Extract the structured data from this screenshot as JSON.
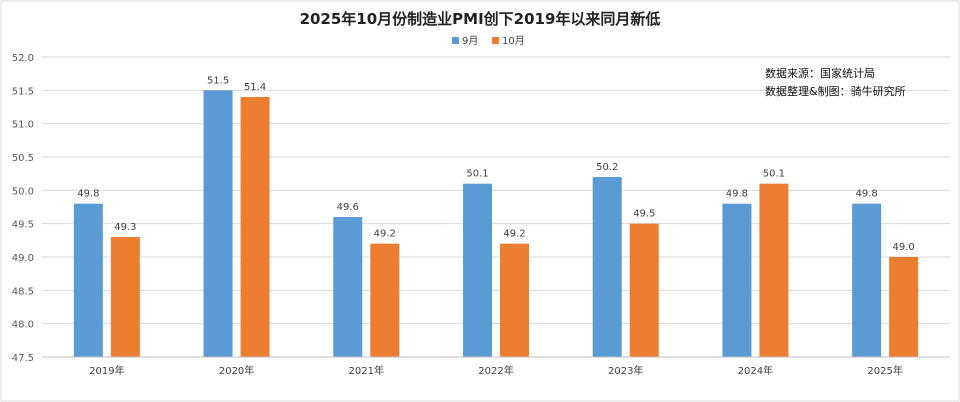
{
  "chart_data": {
    "type": "bar",
    "title": "2025年10月份制造业PMI创下2019年以来同月新低",
    "categories": [
      "2019年",
      "2020年",
      "2021年",
      "2022年",
      "2023年",
      "2024年",
      "2025年"
    ],
    "series": [
      {
        "name": "9月",
        "values": [
          49.8,
          51.5,
          49.6,
          50.1,
          50.2,
          49.8,
          49.8
        ],
        "color": "#5B9BD5"
      },
      {
        "name": "10月",
        "values": [
          49.3,
          51.4,
          49.2,
          49.2,
          49.5,
          50.1,
          49.0
        ],
        "color": "#ED7D31"
      }
    ],
    "ylim": [
      47.5,
      52.0
    ],
    "yticks": [
      "47.5",
      "48.0",
      "48.5",
      "49.0",
      "49.5",
      "50.0",
      "50.5",
      "51.0",
      "51.5",
      "52.0"
    ],
    "grid": true,
    "legend_position": "top-center",
    "annotations": [
      "数据来源：国家统计局",
      "数据整理&制图：骑牛研究所"
    ]
  }
}
